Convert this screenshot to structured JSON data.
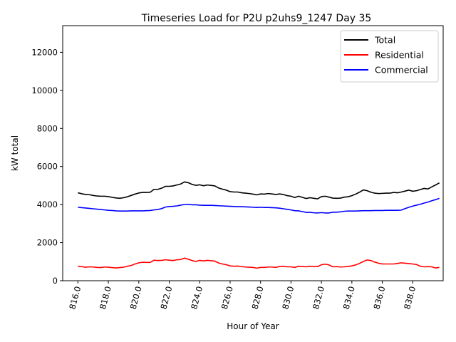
{
  "chart_data": {
    "type": "line",
    "title": "Timeseries Load for P2U p2uhs9_1247  Day 35",
    "xlabel": "Hour of Year",
    "ylabel": "kW total",
    "xlim": [
      815.0,
      840.0
    ],
    "ylim": [
      0,
      13400
    ],
    "x_ticks": [
      816,
      818,
      820,
      822,
      824,
      826,
      828,
      830,
      832,
      834,
      836,
      838
    ],
    "x_tick_labels": [
      "816.0",
      "818.0",
      "820.0",
      "822.0",
      "824.0",
      "826.0",
      "828.0",
      "830.0",
      "832.0",
      "834.0",
      "836.0",
      "838.0"
    ],
    "y_ticks": [
      0,
      2000,
      4000,
      6000,
      8000,
      10000,
      12000
    ],
    "y_tick_labels": [
      "0",
      "2000",
      "4000",
      "6000",
      "8000",
      "10000",
      "12000"
    ],
    "grid": false,
    "legend_position": "top-right",
    "x": [
      816.0,
      816.25,
      816.5,
      816.75,
      817.0,
      817.25,
      817.5,
      817.75,
      818.0,
      818.25,
      818.5,
      818.75,
      819.0,
      819.25,
      819.5,
      819.75,
      820.0,
      820.25,
      820.5,
      820.75,
      821.0,
      821.25,
      821.5,
      821.75,
      822.0,
      822.25,
      822.5,
      822.75,
      823.0,
      823.25,
      823.5,
      823.75,
      824.0,
      824.25,
      824.5,
      824.75,
      825.0,
      825.25,
      825.5,
      825.75,
      826.0,
      826.25,
      826.5,
      826.75,
      827.0,
      827.25,
      827.5,
      827.75,
      828.0,
      828.25,
      828.5,
      828.75,
      829.0,
      829.25,
      829.5,
      829.75,
      830.0,
      830.25,
      830.5,
      830.75,
      831.0,
      831.25,
      831.5,
      831.75,
      832.0,
      832.25,
      832.5,
      832.75,
      833.0,
      833.25,
      833.5,
      833.75,
      834.0,
      834.25,
      834.5,
      834.75,
      835.0,
      835.25,
      835.5,
      835.75,
      836.0,
      836.25,
      836.5,
      836.75,
      837.0,
      837.25,
      837.5,
      837.75,
      838.0,
      838.25,
      838.5,
      838.75,
      839.0,
      839.25,
      839.5,
      839.75
    ],
    "series": [
      {
        "name": "Total",
        "color": "#000000",
        "values": [
          4620,
          4570,
          4530,
          4520,
          4480,
          4450,
          4440,
          4440,
          4420,
          4380,
          4350,
          4330,
          4360,
          4410,
          4480,
          4550,
          4610,
          4640,
          4640,
          4650,
          4800,
          4800,
          4860,
          4960,
          4960,
          4980,
          5030,
          5080,
          5190,
          5150,
          5060,
          5010,
          5040,
          4990,
          5030,
          5010,
          4980,
          4870,
          4810,
          4760,
          4680,
          4660,
          4660,
          4620,
          4600,
          4580,
          4550,
          4510,
          4560,
          4550,
          4580,
          4560,
          4530,
          4560,
          4530,
          4470,
          4440,
          4370,
          4440,
          4380,
          4320,
          4360,
          4330,
          4300,
          4420,
          4440,
          4390,
          4340,
          4330,
          4340,
          4390,
          4410,
          4470,
          4550,
          4650,
          4770,
          4730,
          4650,
          4600,
          4580,
          4590,
          4600,
          4600,
          4640,
          4620,
          4660,
          4710,
          4760,
          4700,
          4730,
          4790,
          4850,
          4820,
          4930,
          5030,
          5140
        ]
      },
      {
        "name": "Residential",
        "color": "#ff0000",
        "values": [
          760,
          740,
          710,
          730,
          720,
          700,
          690,
          720,
          710,
          690,
          670,
          690,
          710,
          760,
          800,
          880,
          940,
          970,
          960,
          960,
          1080,
          1060,
          1070,
          1100,
          1080,
          1060,
          1100,
          1110,
          1190,
          1130,
          1060,
          1010,
          1070,
          1040,
          1070,
          1050,
          1030,
          930,
          880,
          840,
          780,
          760,
          770,
          740,
          720,
          710,
          700,
          660,
          700,
          700,
          720,
          720,
          700,
          750,
          760,
          730,
          730,
          700,
          760,
          750,
          730,
          760,
          750,
          740,
          840,
          870,
          830,
          730,
          740,
          720,
          730,
          750,
          780,
          830,
          910,
          1010,
          1090,
          1060,
          980,
          920,
          880,
          880,
          880,
          880,
          910,
          940,
          920,
          900,
          880,
          850,
          760,
          730,
          740,
          730,
          670,
          700
        ]
      },
      {
        "name": "Commercial",
        "color": "#0000ff",
        "values": [
          3860,
          3840,
          3820,
          3800,
          3780,
          3760,
          3740,
          3720,
          3700,
          3690,
          3670,
          3660,
          3660,
          3660,
          3670,
          3670,
          3670,
          3670,
          3680,
          3690,
          3720,
          3740,
          3790,
          3870,
          3900,
          3910,
          3930,
          3970,
          4000,
          4010,
          3990,
          3990,
          3970,
          3960,
          3960,
          3960,
          3950,
          3940,
          3930,
          3920,
          3910,
          3900,
          3890,
          3890,
          3880,
          3870,
          3860,
          3850,
          3860,
          3850,
          3850,
          3840,
          3830,
          3810,
          3780,
          3750,
          3720,
          3680,
          3670,
          3630,
          3590,
          3590,
          3570,
          3560,
          3580,
          3560,
          3560,
          3600,
          3600,
          3620,
          3650,
          3660,
          3660,
          3660,
          3670,
          3680,
          3680,
          3680,
          3690,
          3690,
          3690,
          3700,
          3700,
          3700,
          3700,
          3710,
          3790,
          3860,
          3920,
          3970,
          4020,
          4080,
          4130,
          4200,
          4260,
          4330
        ]
      }
    ]
  }
}
